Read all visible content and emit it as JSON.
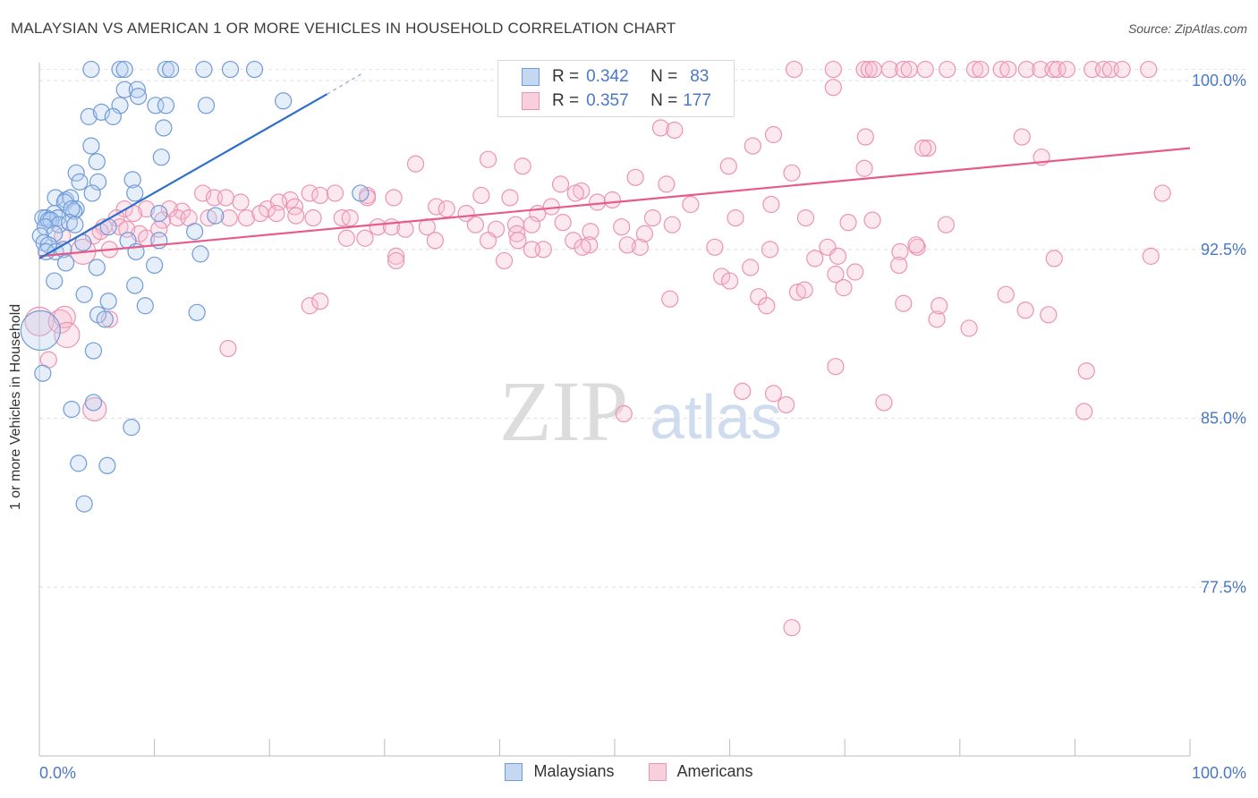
{
  "title": "MALAYSIAN VS AMERICAN 1 OR MORE VEHICLES IN HOUSEHOLD CORRELATION CHART",
  "source": "Source: ZipAtlas.com",
  "watermark": {
    "zip": "ZIP",
    "atlas": "atlas"
  },
  "legend": {
    "malaysians": {
      "r_label": "R =",
      "r_value": "0.342",
      "n_label": "N =",
      "n_value": "83"
    },
    "americans": {
      "r_label": "R =",
      "r_value": "0.357",
      "n_label": "N =",
      "n_value": "177"
    }
  },
  "chart_data": {
    "type": "scatter",
    "title": "MALAYSIAN VS AMERICAN 1 OR MORE VEHICLES IN HOUSEHOLD CORRELATION CHART",
    "xlabel": "",
    "ylabel": "1 or more Vehicles in Household",
    "xlim": [
      0,
      100
    ],
    "ylim": [
      70.0,
      100.8
    ],
    "x_tick_labels": [
      "0.0%",
      "100.0%"
    ],
    "y_ticks": [
      77.5,
      85.0,
      92.5,
      100.0
    ],
    "y_tick_labels": [
      "77.5%",
      "85.0%",
      "92.5%",
      "100.0%"
    ],
    "grid": true,
    "legend_position": "top-center",
    "series": [
      {
        "name": "Malaysians",
        "color": "#8fb4e3",
        "line_color": "#2f6fcc",
        "trend": {
          "x0": 0,
          "y0": 92.1,
          "x1": 25,
          "y1": 99.4,
          "dash_to_x": 28,
          "dash_to_y": 100.3
        },
        "points": [
          [
            4.5,
            100.5
          ],
          [
            7.0,
            100.5
          ],
          [
            7.4,
            100.5
          ],
          [
            11.0,
            100.5
          ],
          [
            11.4,
            100.5
          ],
          [
            14.3,
            100.5
          ],
          [
            16.6,
            100.5
          ],
          [
            18.7,
            100.5
          ],
          [
            7.4,
            99.6
          ],
          [
            8.5,
            99.6
          ],
          [
            8.6,
            99.3
          ],
          [
            7.0,
            98.9
          ],
          [
            10.1,
            98.9
          ],
          [
            11.0,
            98.9
          ],
          [
            14.5,
            98.9
          ],
          [
            21.2,
            99.1
          ],
          [
            4.3,
            98.4
          ],
          [
            5.4,
            98.6
          ],
          [
            6.4,
            98.4
          ],
          [
            10.8,
            97.9
          ],
          [
            4.5,
            97.1
          ],
          [
            10.6,
            96.6
          ],
          [
            5.0,
            96.4
          ],
          [
            3.2,
            95.9
          ],
          [
            8.1,
            95.6
          ],
          [
            3.5,
            95.5
          ],
          [
            5.1,
            95.5
          ],
          [
            4.6,
            95.0
          ],
          [
            8.3,
            95.0
          ],
          [
            1.4,
            94.8
          ],
          [
            2.3,
            94.7
          ],
          [
            2.7,
            94.8
          ],
          [
            2.2,
            94.6
          ],
          [
            3.2,
            94.3
          ],
          [
            3.0,
            94.2
          ],
          [
            2.8,
            94.3
          ],
          [
            1.3,
            94.1
          ],
          [
            0.6,
            93.9
          ],
          [
            0.3,
            93.9
          ],
          [
            1.6,
            93.9
          ],
          [
            0.8,
            93.8
          ],
          [
            1.0,
            93.8
          ],
          [
            1.7,
            93.6
          ],
          [
            2.6,
            93.7
          ],
          [
            3.1,
            93.6
          ],
          [
            0.5,
            93.5
          ],
          [
            10.4,
            94.1
          ],
          [
            15.3,
            94.0
          ],
          [
            6.0,
            93.5
          ],
          [
            1.3,
            93.2
          ],
          [
            0.1,
            93.1
          ],
          [
            0.4,
            92.8
          ],
          [
            0.8,
            92.7
          ],
          [
            1.4,
            92.4
          ],
          [
            2.1,
            92.5
          ],
          [
            0.6,
            92.4
          ],
          [
            3.8,
            92.8
          ],
          [
            7.7,
            92.9
          ],
          [
            10.4,
            92.9
          ],
          [
            13.5,
            93.3
          ],
          [
            8.4,
            92.4
          ],
          [
            14.0,
            92.3
          ],
          [
            2.3,
            91.9
          ],
          [
            5.0,
            91.7
          ],
          [
            10.0,
            91.8
          ],
          [
            1.3,
            91.1
          ],
          [
            8.3,
            90.9
          ],
          [
            3.9,
            90.5
          ],
          [
            6.0,
            90.2
          ],
          [
            9.2,
            90.0
          ],
          [
            13.7,
            89.7
          ],
          [
            5.1,
            89.6
          ],
          [
            5.7,
            89.4
          ],
          [
            0.1,
            88.9
          ],
          [
            4.7,
            88.0
          ],
          [
            4.7,
            85.7
          ],
          [
            2.8,
            85.4
          ],
          [
            8.0,
            84.6
          ],
          [
            3.4,
            83.0
          ],
          [
            5.9,
            82.9
          ],
          [
            3.9,
            81.2
          ],
          [
            0.3,
            87.0
          ],
          [
            27.9,
            95.0
          ]
        ]
      },
      {
        "name": "Americans",
        "color": "#f4a6bf",
        "line_color": "#e55c8a",
        "trend": {
          "x0": 0,
          "y0": 92.2,
          "x1": 100,
          "y1": 97.0
        },
        "points": [
          [
            65.6,
            100.5
          ],
          [
            69.0,
            100.5
          ],
          [
            71.7,
            100.5
          ],
          [
            72.1,
            100.5
          ],
          [
            73.9,
            100.5
          ],
          [
            75.1,
            100.5
          ],
          [
            77.0,
            100.5
          ],
          [
            78.9,
            100.5
          ],
          [
            81.3,
            100.5
          ],
          [
            81.8,
            100.5
          ],
          [
            83.6,
            100.5
          ],
          [
            84.2,
            100.5
          ],
          [
            85.8,
            100.5
          ],
          [
            87.0,
            100.5
          ],
          [
            88.1,
            100.5
          ],
          [
            88.5,
            100.5
          ],
          [
            89.3,
            100.5
          ],
          [
            91.5,
            100.5
          ],
          [
            92.5,
            100.5
          ],
          [
            93.1,
            100.5
          ],
          [
            94.1,
            100.5
          ],
          [
            96.4,
            100.5
          ],
          [
            75.6,
            100.5
          ],
          [
            72.5,
            100.5
          ],
          [
            69.0,
            99.7
          ],
          [
            52.2,
            99.0
          ],
          [
            51.1,
            99.0
          ],
          [
            54.0,
            97.9
          ],
          [
            55.2,
            97.8
          ],
          [
            63.8,
            97.6
          ],
          [
            71.8,
            97.5
          ],
          [
            77.2,
            97.0
          ],
          [
            76.8,
            97.0
          ],
          [
            85.4,
            97.5
          ],
          [
            87.1,
            96.6
          ],
          [
            62.0,
            97.1
          ],
          [
            71.7,
            96.1
          ],
          [
            59.9,
            96.2
          ],
          [
            65.4,
            95.9
          ],
          [
            39.0,
            96.5
          ],
          [
            32.7,
            96.3
          ],
          [
            42.0,
            96.2
          ],
          [
            51.8,
            95.7
          ],
          [
            54.5,
            95.4
          ],
          [
            45.3,
            95.4
          ],
          [
            47.1,
            95.1
          ],
          [
            46.6,
            95.0
          ],
          [
            38.4,
            94.9
          ],
          [
            40.9,
            94.8
          ],
          [
            30.8,
            94.8
          ],
          [
            28.5,
            94.9
          ],
          [
            23.5,
            95.0
          ],
          [
            21.8,
            94.7
          ],
          [
            28.5,
            94.8
          ],
          [
            14.2,
            95.0
          ],
          [
            15.2,
            94.8
          ],
          [
            16.2,
            94.8
          ],
          [
            17.5,
            94.6
          ],
          [
            19.8,
            94.3
          ],
          [
            20.8,
            94.6
          ],
          [
            22.2,
            94.4
          ],
          [
            24.4,
            94.9
          ],
          [
            25.7,
            95.0
          ],
          [
            12.4,
            94.2
          ],
          [
            11.3,
            94.3
          ],
          [
            9.3,
            94.3
          ],
          [
            7.4,
            94.3
          ],
          [
            6.7,
            93.9
          ],
          [
            8.2,
            94.1
          ],
          [
            10.7,
            93.8
          ],
          [
            12.0,
            93.9
          ],
          [
            13.0,
            93.9
          ],
          [
            14.7,
            93.9
          ],
          [
            16.5,
            93.9
          ],
          [
            18.0,
            93.9
          ],
          [
            19.2,
            94.1
          ],
          [
            20.6,
            94.1
          ],
          [
            22.3,
            94.0
          ],
          [
            23.8,
            93.9
          ],
          [
            26.3,
            93.9
          ],
          [
            27.0,
            93.9
          ],
          [
            29.4,
            93.5
          ],
          [
            30.6,
            93.5
          ],
          [
            31.8,
            93.4
          ],
          [
            33.7,
            93.5
          ],
          [
            34.5,
            94.4
          ],
          [
            35.4,
            94.3
          ],
          [
            37.1,
            94.1
          ],
          [
            37.9,
            93.6
          ],
          [
            41.4,
            93.6
          ],
          [
            43.3,
            94.1
          ],
          [
            44.5,
            94.4
          ],
          [
            45.5,
            93.7
          ],
          [
            48.5,
            94.6
          ],
          [
            49.8,
            94.7
          ],
          [
            53.3,
            93.9
          ],
          [
            55.0,
            93.6
          ],
          [
            56.6,
            94.5
          ],
          [
            60.5,
            93.9
          ],
          [
            63.6,
            94.5
          ],
          [
            66.6,
            93.9
          ],
          [
            68.5,
            92.6
          ],
          [
            70.3,
            93.7
          ],
          [
            72.4,
            93.8
          ],
          [
            78.8,
            93.6
          ],
          [
            96.6,
            92.2
          ],
          [
            97.6,
            95.0
          ],
          [
            39.7,
            93.4
          ],
          [
            41.5,
            93.2
          ],
          [
            42.8,
            93.6
          ],
          [
            47.9,
            93.3
          ],
          [
            50.6,
            93.5
          ],
          [
            52.6,
            93.2
          ],
          [
            5.6,
            93.5
          ],
          [
            7.0,
            93.5
          ],
          [
            7.6,
            93.4
          ],
          [
            8.7,
            93.2
          ],
          [
            9.3,
            93.0
          ],
          [
            10.4,
            93.4
          ],
          [
            4.7,
            93.1
          ],
          [
            5.3,
            93.3
          ],
          [
            2.0,
            93.1
          ],
          [
            3.8,
            92.4
          ],
          [
            6.1,
            92.5
          ],
          [
            26.7,
            93.0
          ],
          [
            28.3,
            93.0
          ],
          [
            34.4,
            92.9
          ],
          [
            39.0,
            92.9
          ],
          [
            41.6,
            92.9
          ],
          [
            43.8,
            92.5
          ],
          [
            46.4,
            92.9
          ],
          [
            47.8,
            92.7
          ],
          [
            52.2,
            92.6
          ],
          [
            58.7,
            92.6
          ],
          [
            63.5,
            92.5
          ],
          [
            67.4,
            92.1
          ],
          [
            69.4,
            92.2
          ],
          [
            74.8,
            92.4
          ],
          [
            76.3,
            92.6
          ],
          [
            76.2,
            92.7
          ],
          [
            31.0,
            92.2
          ],
          [
            31.0,
            92.0
          ],
          [
            40.4,
            92.0
          ],
          [
            42.8,
            92.5
          ],
          [
            47.2,
            92.6
          ],
          [
            51.1,
            92.7
          ],
          [
            70.9,
            91.5
          ],
          [
            74.7,
            91.8
          ],
          [
            59.3,
            91.3
          ],
          [
            61.8,
            91.7
          ],
          [
            69.2,
            91.4
          ],
          [
            88.2,
            92.1
          ],
          [
            60.0,
            91.1
          ],
          [
            62.5,
            90.4
          ],
          [
            65.9,
            90.6
          ],
          [
            66.5,
            90.7
          ],
          [
            69.9,
            90.8
          ],
          [
            75.1,
            90.1
          ],
          [
            78.0,
            89.4
          ],
          [
            80.8,
            89.0
          ],
          [
            85.7,
            89.8
          ],
          [
            87.7,
            89.6
          ],
          [
            84.0,
            90.5
          ],
          [
            54.8,
            90.3
          ],
          [
            63.2,
            90.0
          ],
          [
            78.2,
            90.0
          ],
          [
            0.0,
            89.3
          ],
          [
            1.8,
            89.3
          ],
          [
            2.2,
            89.5
          ],
          [
            23.5,
            90.0
          ],
          [
            24.4,
            90.2
          ],
          [
            6.1,
            89.4
          ],
          [
            2.4,
            88.7
          ],
          [
            16.4,
            88.1
          ],
          [
            0.8,
            87.6
          ],
          [
            69.2,
            87.3
          ],
          [
            91.0,
            87.1
          ],
          [
            63.8,
            86.1
          ],
          [
            61.1,
            86.2
          ],
          [
            64.9,
            85.6
          ],
          [
            73.4,
            85.7
          ],
          [
            65.4,
            75.7
          ],
          [
            4.8,
            85.4
          ],
          [
            50.8,
            85.2
          ],
          [
            90.8,
            85.3
          ]
        ]
      }
    ]
  },
  "axis": {
    "ylabel": "1 or more Vehicles in Household",
    "x_left": "0.0%",
    "x_right": "100.0%",
    "y_ticks": [
      "100.0%",
      "92.5%",
      "85.0%",
      "77.5%"
    ]
  },
  "bottom_legend": {
    "malaysians": "Malaysians",
    "americans": "Americans"
  },
  "colors": {
    "blue": "#8fb4e3",
    "pink": "#f4a6bf",
    "tick_blue": "#4a78c4"
  }
}
